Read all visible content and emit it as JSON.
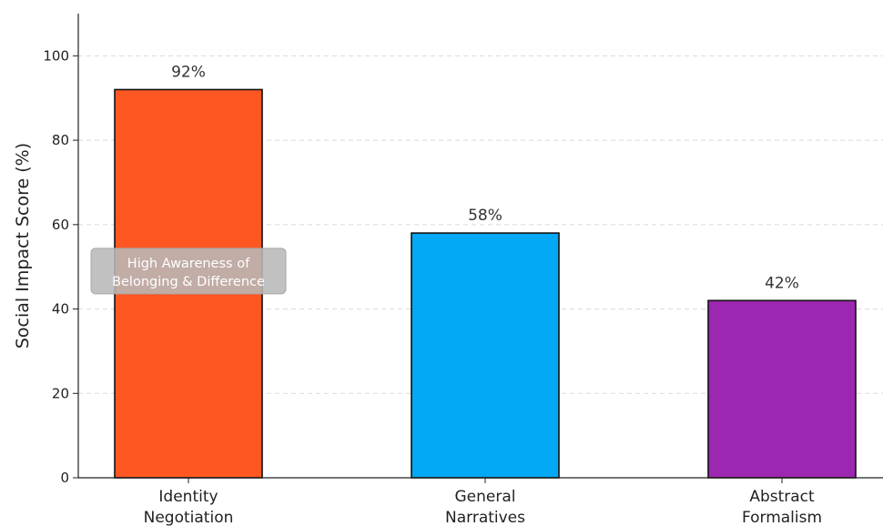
{
  "chart_data": {
    "type": "bar",
    "categories": [
      "Identity\nNegotiation",
      "General\nNarratives",
      "Abstract\nFormalism"
    ],
    "values": [
      92,
      58,
      42
    ],
    "value_labels": [
      "92%",
      "58%",
      "42%"
    ],
    "colors": [
      "#ff5722",
      "#03a9f4",
      "#9c27b0"
    ],
    "ylabel": "Social Impact Score (%)",
    "xlabel": "",
    "ylim": [
      0,
      110
    ],
    "yticks": [
      0,
      20,
      40,
      60,
      80,
      100
    ],
    "grid": true,
    "annotation": {
      "text": "High Awareness of\nBelonging & Difference",
      "category": "Identity\nNegotiation",
      "y": 49
    }
  }
}
